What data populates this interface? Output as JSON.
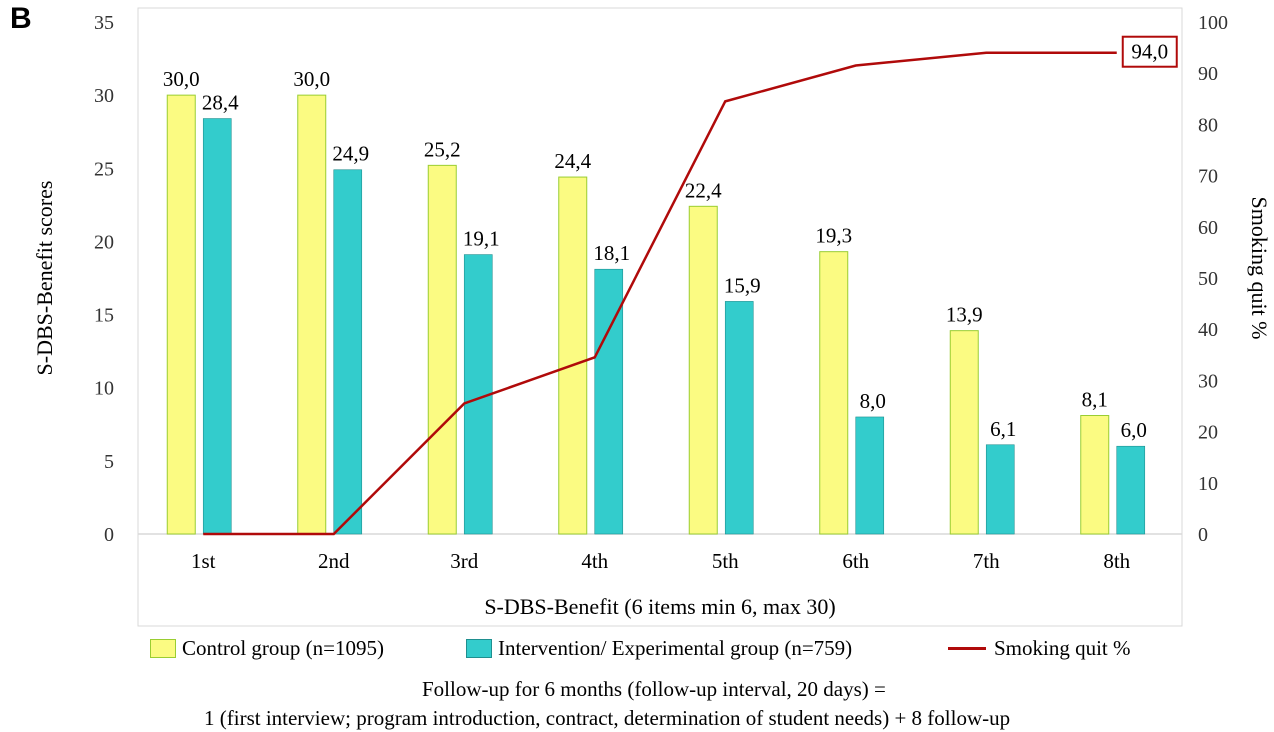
{
  "panel_label": "B",
  "legend": {
    "control": "Control group (n=1095)",
    "intervention": "Intervention/ Experimental group (n=759)",
    "quit": "Smoking quit %"
  },
  "footnote": {
    "line1": "Follow-up for 6 months (follow-up interval, 20 days) =",
    "line2": "1 (first interview; program introduction, contract, determination of student needs) + 8 follow-up"
  },
  "colors": {
    "control": "#fbfb82",
    "control_border": "#9acd32",
    "intervention": "#33cccc",
    "intervention_border": "#1f8f8f",
    "line": "#b00a0a",
    "grid": "#d9d9d9"
  },
  "chart_data": {
    "type": "bar",
    "categories": [
      "1st",
      "2nd",
      "3rd",
      "4th",
      "5th",
      "6th",
      "7th",
      "8th"
    ],
    "series": [
      {
        "name": "Control group (n=1095)",
        "type": "bar",
        "axis": "left",
        "values": [
          30.0,
          30.0,
          25.2,
          24.4,
          22.4,
          19.3,
          13.9,
          8.1
        ],
        "labels": [
          "30,0",
          "30,0",
          "25,2",
          "24,4",
          "22,4",
          "19,3",
          "13,9",
          "8,1"
        ]
      },
      {
        "name": "Intervention/ Experimental group (n=759)",
        "type": "bar",
        "axis": "left",
        "values": [
          28.4,
          24.9,
          19.1,
          18.1,
          15.9,
          8.0,
          6.1,
          6.0
        ],
        "labels": [
          "28,4",
          "24,9",
          "19,1",
          "18,1",
          "15,9",
          "8,0",
          "6,1",
          "6,0"
        ]
      },
      {
        "name": "Smoking quit %",
        "type": "line",
        "axis": "right",
        "values": [
          0,
          0,
          25.5,
          34.5,
          84.5,
          91.5,
          94.0,
          94.0
        ],
        "end_label": "94,0"
      }
    ],
    "xlabel": "S-DBS-Benefit  (6 items min 6, max 30)",
    "ylabel": "S-DBS-Benefit scores",
    "y2label": "Smoking quit %",
    "ylim": [
      0,
      35
    ],
    "y2lim": [
      0,
      100
    ],
    "yticks": [
      0,
      5,
      10,
      15,
      20,
      25,
      30,
      35
    ],
    "y2ticks": [
      0,
      10,
      20,
      30,
      40,
      50,
      60,
      70,
      80,
      90,
      100
    ],
    "grid": false,
    "legend_position": "bottom"
  }
}
